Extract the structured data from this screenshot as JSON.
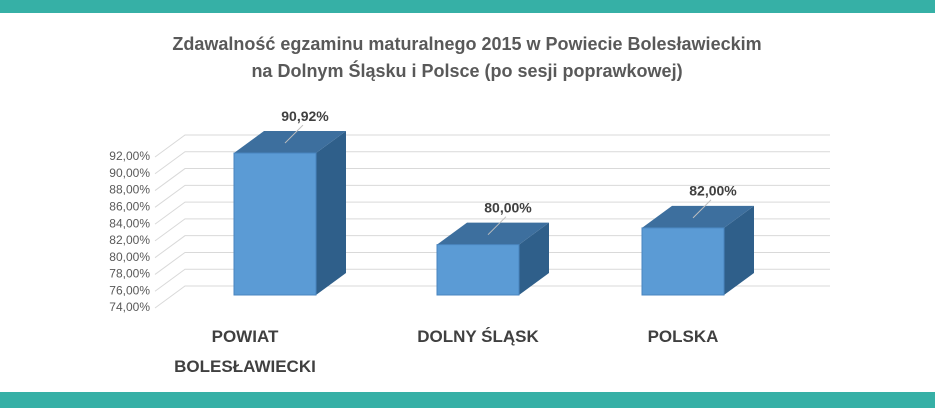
{
  "chart_data": {
    "type": "bar3d",
    "title": [
      "Zdawalność egzaminu maturalnego 2015 w Powiecie Bolesławieckim",
      "na Dolnym Śląsku i Polsce (po sesji poprawkowej)"
    ],
    "categories": [
      "POWIAT BOLESŁAWIECKI",
      "DOLNY ŚLĄSK",
      "POLSKA"
    ],
    "values": [
      90.92,
      80,
      82
    ],
    "value_labels": [
      "90,92%",
      "80,00%",
      "82,00%"
    ],
    "color": "#5b9bd5",
    "ylim": [
      74,
      92
    ],
    "yticks": [
      {
        "value": 74,
        "label": "74,00%"
      },
      {
        "value": 76,
        "label": "76,00%"
      },
      {
        "value": 78,
        "label": "78,00%"
      },
      {
        "value": 80,
        "label": "80,00%"
      },
      {
        "value": 82,
        "label": "82,00%"
      },
      {
        "value": 84,
        "label": "84,00%"
      },
      {
        "value": 86,
        "label": "86,00%"
      },
      {
        "value": 88,
        "label": "88,00%"
      },
      {
        "value": 90,
        "label": "90,00%"
      },
      {
        "value": 92,
        "label": "92,00%"
      }
    ],
    "grid": true
  }
}
